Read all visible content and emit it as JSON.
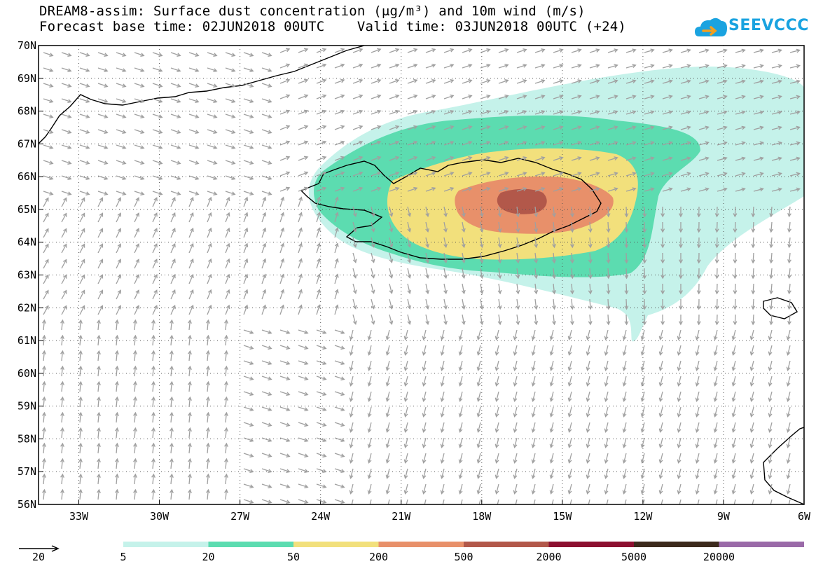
{
  "title": {
    "line1": "DREAM8-assim: Surface dust concentration (μg/m³) and 10m wind (m/s)",
    "line2": "Forecast base time: 02JUN2018 00UTC    Valid time: 03JUN2018 00UTC (+24)"
  },
  "logo": {
    "text": "SEEVCCC",
    "icon": "cloud-arrow-icon",
    "color": "#1aa3e0"
  },
  "map": {
    "lat_labels": [
      "70N",
      "69N",
      "68N",
      "67N",
      "66N",
      "65N",
      "64N",
      "63N",
      "62N",
      "61N",
      "60N",
      "59N",
      "58N",
      "57N",
      "56N"
    ],
    "lon_labels": [
      "33W",
      "30W",
      "27W",
      "24W",
      "21W",
      "18W",
      "15W",
      "12W",
      "9W",
      "6W"
    ],
    "lat_range": [
      56,
      70
    ],
    "lon_range": [
      -34.5,
      -6
    ],
    "grid": "dotted",
    "land_outline": "black",
    "wind_arrow_color": "#a0a0a0"
  },
  "legend": {
    "wind_reference": {
      "label": "20",
      "icon": "reference-arrow-icon"
    },
    "levels": [
      "5",
      "20",
      "50",
      "200",
      "500",
      "2000",
      "5000",
      "20000"
    ],
    "colors": [
      "#c5f2ea",
      "#5cdcb0",
      "#f2e07c",
      "#e8906a",
      "#b2584a",
      "#8c1030",
      "#3c2a1c",
      "#9a6aa8"
    ]
  }
}
